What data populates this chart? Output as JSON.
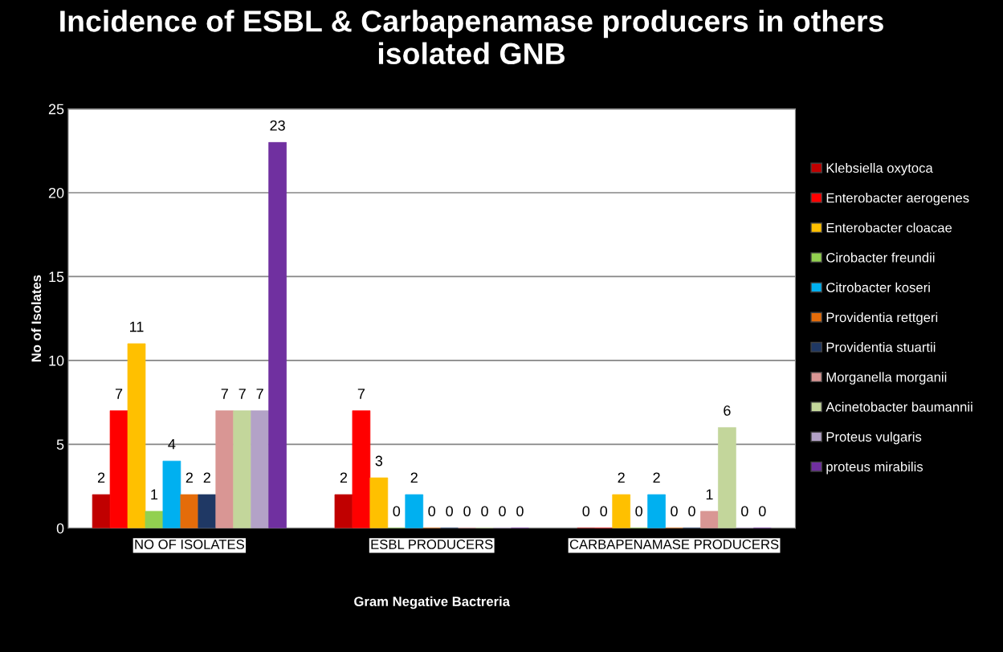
{
  "chart_data": {
    "type": "bar",
    "title": "Incidence of ESBL & Carbapenamase producers in others isolated GNB",
    "xlabel": "Gram Negative Bactreria",
    "ylabel": "No of Isolates",
    "categories": [
      "NO OF ISOLATES",
      "ESBL PRODUCERS",
      "CARBAPENAMASE PRODUCERS"
    ],
    "series": [
      {
        "name": "Klebsiella oxytoca",
        "color": "#c00000",
        "values": [
          2,
          2,
          0
        ]
      },
      {
        "name": "Enterobacter aerogenes",
        "color": "#ff0000",
        "values": [
          7,
          7,
          0
        ]
      },
      {
        "name": "Enterobacter cloacae",
        "color": "#ffc000",
        "values": [
          11,
          3,
          2
        ]
      },
      {
        "name": "Cirobacter freundii",
        "color": "#92d050",
        "values": [
          1,
          0,
          0
        ]
      },
      {
        "name": "Citrobacter koseri",
        "color": "#00b0f0",
        "values": [
          4,
          2,
          2
        ]
      },
      {
        "name": "Providentia rettgeri",
        "color": "#e46c0a",
        "values": [
          2,
          0,
          0
        ]
      },
      {
        "name": "Providentia stuartii",
        "color": "#1f3864",
        "values": [
          2,
          0,
          0
        ]
      },
      {
        "name": "Morganella morganii",
        "color": "#d99694",
        "values": [
          7,
          0,
          1
        ]
      },
      {
        "name": "Acinetobacter baumannii",
        "color": "#c3d69b",
        "values": [
          7,
          0,
          6
        ]
      },
      {
        "name": "Proteus vulgaris",
        "color": "#b3a2c7",
        "values": [
          7,
          0,
          0
        ]
      },
      {
        "name": "proteus mirabilis",
        "color": "#7030a0",
        "values": [
          23,
          0,
          0
        ]
      }
    ],
    "ylim": [
      0,
      25
    ],
    "yticks": [
      0,
      5,
      10,
      15,
      20,
      25
    ],
    "grid": "y",
    "legend": "right",
    "data_labels": true
  }
}
